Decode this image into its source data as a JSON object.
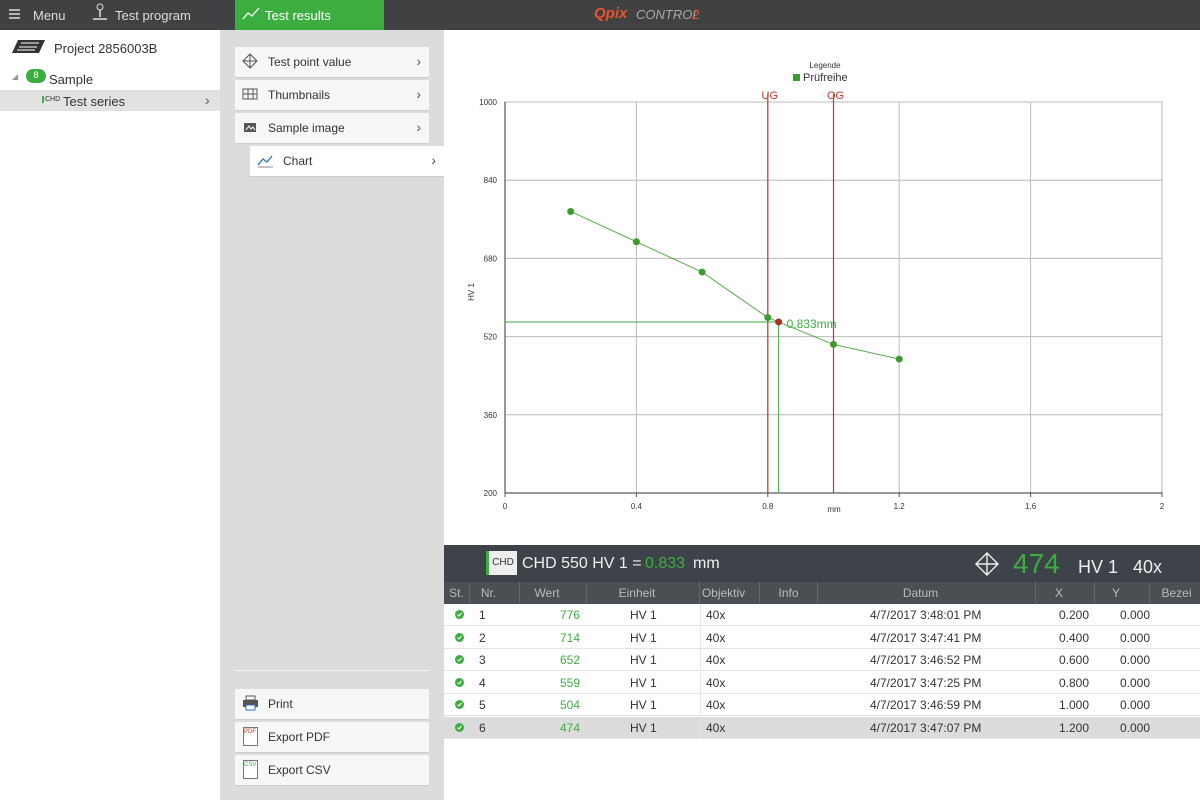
{
  "topbar": {
    "menu": "Menu",
    "test_program": "Test program",
    "test_results": "Test results",
    "logo": {
      "brand": "Qpix",
      "product": "CONTROL",
      "version": "2"
    }
  },
  "tree": {
    "project": "Project 2856003B",
    "sample": "Sample",
    "sample_badge": "8",
    "series_icon": "CHD",
    "series": "Test series"
  },
  "views": [
    "Test point value",
    "Thumbnails",
    "Sample image",
    "Chart"
  ],
  "actions": [
    {
      "label": "Print"
    },
    {
      "label": "Export PDF",
      "icon": "PDF"
    },
    {
      "label": "Export CSV",
      "icon": "CSV"
    }
  ],
  "chart_data": {
    "type": "line",
    "legend_title": "Legende",
    "x_label": "mm",
    "y_label": "HV 1",
    "x": [
      0.2,
      0.4,
      0.6,
      0.8,
      1.0,
      1.2
    ],
    "series": [
      {
        "name": "Prüfreihe",
        "color": "#3d9a2f",
        "values": [
          776,
          714,
          652,
          559,
          504,
          474
        ]
      }
    ],
    "xlim": [
      0,
      2
    ],
    "xticks": [
      0,
      0.4,
      0.8,
      1.2,
      1.6,
      2
    ],
    "ylim": [
      200,
      1000
    ],
    "yticks": [
      200,
      360,
      520,
      680,
      840,
      1000
    ],
    "grid": true,
    "limit_color": "#c0392b",
    "limits": [
      {
        "label": "UG",
        "value": 0.8
      },
      {
        "label": "OG",
        "value": 1.0
      }
    ],
    "marker": {
      "x": 0.833,
      "y": 550,
      "label": "0.833mm",
      "color": "#b03020"
    }
  },
  "result_bar": {
    "badge": "CHD",
    "label": "CHD 550 HV 1 =",
    "unit": "mm",
    "scale": "HV 1",
    "objective": "40x"
  },
  "table": {
    "columns": [
      "St.",
      "Nr.",
      "Wert",
      "Einheit",
      "Objektiv",
      "Info",
      "Datum",
      "X",
      "Y",
      "Bezei"
    ],
    "selected": 5,
    "rows": [
      {
        "nr": "1",
        "unit": "HV 1",
        "objective": "40x",
        "date": "4/7/2017 3:48:01 PM",
        "x": "0.200",
        "y": "0.000"
      },
      {
        "nr": "2",
        "unit": "HV 1",
        "objective": "40x",
        "date": "4/7/2017 3:47:41 PM",
        "x": "0.400",
        "y": "0.000"
      },
      {
        "nr": "3",
        "unit": "HV 1",
        "objective": "40x",
        "date": "4/7/2017 3:46:52 PM",
        "x": "0.600",
        "y": "0.000"
      },
      {
        "nr": "4",
        "unit": "HV 1",
        "objective": "40x",
        "date": "4/7/2017 3:47:25 PM",
        "x": "0.800",
        "y": "0.000"
      },
      {
        "nr": "5",
        "unit": "HV 1",
        "objective": "40x",
        "date": "4/7/2017 3:46:59 PM",
        "x": "1.000",
        "y": "0.000"
      },
      {
        "nr": "6",
        "unit": "HV 1",
        "objective": "40x",
        "date": "4/7/2017 3:47:07 PM",
        "x": "1.200",
        "y": "0.000"
      }
    ]
  }
}
